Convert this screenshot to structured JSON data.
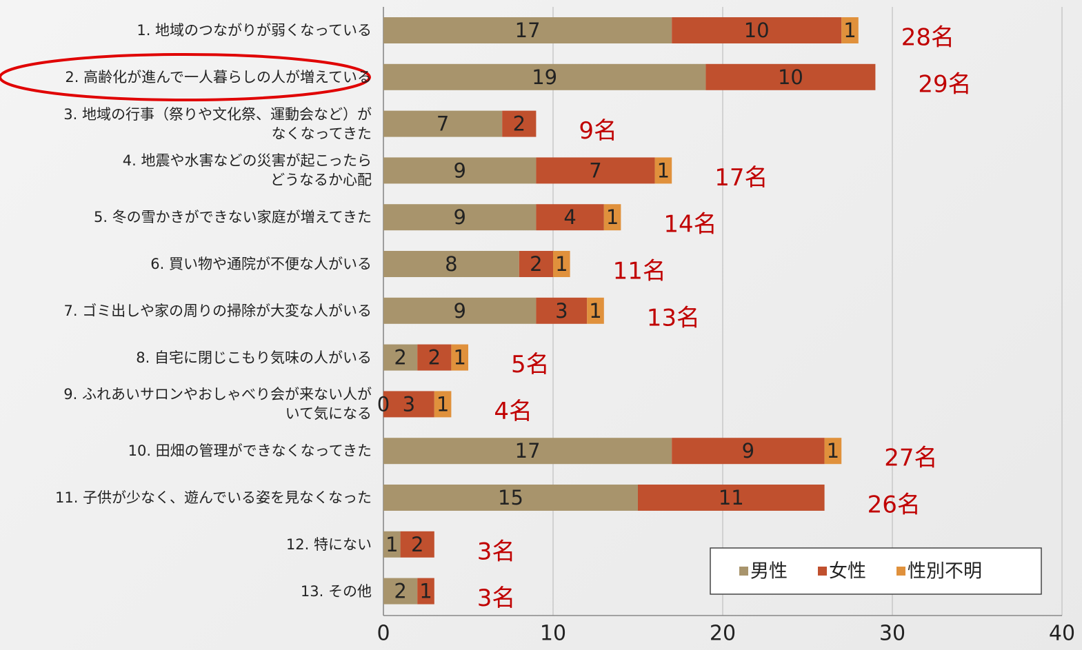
{
  "chart_data": {
    "type": "bar_stacked_horizontal",
    "categories": [
      "1. 地域のつながりが弱くなっている",
      "2. 高齢化が進んで一人暮らしの人が増えている",
      "3. 地域の行事（祭りや文化祭、運動会など）が\nなくなってきた",
      "4. 地震や水害などの災害が起こったら\nどうなるか心配",
      "5. 冬の雪かきができない家庭が増えてきた",
      "6. 買い物や通院が不便な人がいる",
      "7. ゴミ出しや家の周りの掃除が大変な人がいる",
      "8. 自宅に閉じこもり気味の人がいる",
      "9. ふれあいサロンやおしゃべり会が来ない人が\nいて気になる",
      "10. 田畑の管理ができなくなってきた",
      "11. 子供が少なく、遊んでいる姿を見なくなった",
      "12. 特にない",
      "13. その他"
    ],
    "series": [
      {
        "name": "男性",
        "color": "#a8946c",
        "values": [
          17,
          19,
          7,
          9,
          9,
          8,
          9,
          2,
          0,
          17,
          15,
          1,
          2
        ]
      },
      {
        "name": "女性",
        "color": "#c0502e",
        "values": [
          10,
          10,
          2,
          7,
          4,
          2,
          3,
          2,
          3,
          9,
          11,
          2,
          1
        ]
      },
      {
        "name": "性別不明",
        "color": "#e0913c",
        "values": [
          1,
          0,
          0,
          1,
          1,
          1,
          1,
          1,
          1,
          1,
          0,
          0,
          0
        ]
      }
    ],
    "totals": [
      "28名",
      "29名",
      "9名",
      "17名",
      "14名",
      "11名",
      "13名",
      "5名",
      "4名",
      "27名",
      "26名",
      "3名",
      "3名"
    ],
    "xlim": [
      0,
      40
    ],
    "xticks": [
      0,
      10,
      20,
      30,
      40
    ],
    "grid": true,
    "legend": "lower right"
  }
}
